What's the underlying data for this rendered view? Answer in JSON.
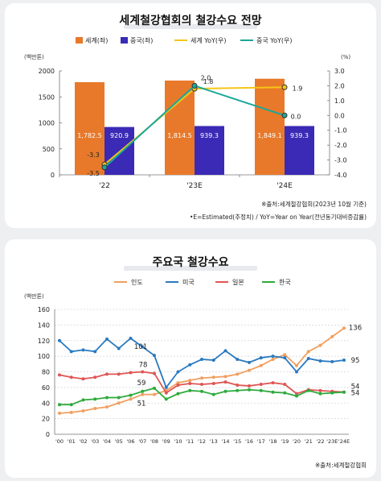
{
  "chart_data": [
    {
      "type": "bar",
      "title": "세계철강협회의 철강수요 전망",
      "legend": [
        {
          "label": "세계(좌)",
          "color": "#e8792a",
          "kind": "bar"
        },
        {
          "label": "중국(좌)",
          "color": "#3b2ab5",
          "kind": "bar"
        },
        {
          "label": "세계 YoY(우)",
          "color": "#f5c518",
          "kind": "line"
        },
        {
          "label": "중국 YoY(우)",
          "color": "#1aa89a",
          "kind": "line"
        }
      ],
      "categories": [
        "'22",
        "'23E",
        "'24E"
      ],
      "series": [
        {
          "name": "세계(좌)",
          "values": [
            1782.5,
            1814.5,
            1849.1
          ],
          "labels": [
            "1,782.5",
            "1,814.5",
            "1,849.1"
          ],
          "color": "#e8792a"
        },
        {
          "name": "중국(좌)",
          "values": [
            920.9,
            939.3,
            939.3
          ],
          "labels": [
            "920.9",
            "939.3",
            "939.3"
          ],
          "color": "#3b2ab5"
        }
      ],
      "line_series": [
        {
          "name": "세계 YoY(우)",
          "values": [
            -3.3,
            1.8,
            1.9
          ],
          "labels": [
            "-3.3",
            "1.8",
            "1.9"
          ],
          "color": "#f5c518"
        },
        {
          "name": "중국 YoY(우)",
          "values": [
            -3.5,
            2.0,
            0.0
          ],
          "labels": [
            "-3.5",
            "2.0",
            "0.0"
          ],
          "color": "#1aa89a"
        }
      ],
      "ylabel": "(백만톤)",
      "ylabel_right": "(%)",
      "ylim": [
        0,
        2000
      ],
      "yticks": [
        "0",
        "500",
        "1000",
        "1500",
        "2000"
      ],
      "ylim_right": [
        -4.0,
        3.0
      ],
      "yticks_right": [
        "-4.0",
        "-3.0",
        "-2.0",
        "-1.0",
        "0.0",
        "1.0",
        "2.0",
        "3.0"
      ],
      "notes": [
        "※출처:세계철강협회(2023년 10월 기준)",
        "•E=Estimated(추정치) / YoY=Year on Year(전년동기대비증감률)"
      ]
    },
    {
      "type": "line",
      "title": "주요국 철강수요",
      "ylabel": "(백만톤)",
      "ylim": [
        0,
        160
      ],
      "yticks": [
        "0",
        "20",
        "40",
        "60",
        "80",
        "100",
        "120",
        "140",
        "160"
      ],
      "x": [
        "'00",
        "'01",
        "'02",
        "'03",
        "'04",
        "'05",
        "'06",
        "'07",
        "'08",
        "'09",
        "'10",
        "'11",
        "'12",
        "'13",
        "'14",
        "'15",
        "'16",
        "'17",
        "'18",
        "'19",
        "'20",
        "'21",
        "'22",
        "'23E",
        "'24E"
      ],
      "series": [
        {
          "name": "인도",
          "color": "#f0a060",
          "values": [
            27,
            28,
            30,
            33,
            35,
            40,
            45,
            51,
            51,
            56,
            66,
            69,
            72,
            73,
            74,
            77,
            82,
            88,
            96,
            102,
            88,
            106,
            114,
            125,
            136
          ]
        },
        {
          "name": "미국",
          "color": "#2a7ac0",
          "values": [
            120,
            106,
            108,
            106,
            122,
            110,
            123,
            112,
            101,
            60,
            80,
            89,
            96,
            95,
            107,
            96,
            92,
            98,
            100,
            98,
            80,
            97,
            94,
            93,
            95
          ]
        },
        {
          "name": "일본",
          "color": "#e05555",
          "values": [
            76,
            73,
            71,
            73,
            77,
            77,
            79,
            80,
            78,
            53,
            63,
            65,
            64,
            65,
            67,
            63,
            62,
            64,
            66,
            64,
            52,
            57,
            56,
            55,
            54
          ]
        },
        {
          "name": "한국",
          "color": "#2eaa3c",
          "values": [
            38,
            38,
            44,
            45,
            47,
            47,
            50,
            55,
            59,
            45,
            52,
            56,
            55,
            51,
            55,
            56,
            57,
            56,
            54,
            53,
            49,
            56,
            52,
            53,
            54
          ]
        }
      ],
      "point_labels": [
        {
          "series": "미국",
          "index": 8,
          "text": "101"
        },
        {
          "series": "일본",
          "index": 8,
          "text": "78"
        },
        {
          "series": "한국",
          "index": 8,
          "text": "59"
        },
        {
          "series": "인도",
          "index": 8,
          "text": "51"
        },
        {
          "series": "인도",
          "index": 24,
          "text": "136"
        },
        {
          "series": "미국",
          "index": 24,
          "text": "95"
        },
        {
          "series": "일본",
          "index": 24,
          "text": "54"
        },
        {
          "series": "한국",
          "index": 24,
          "text": "54"
        }
      ],
      "notes": [
        "※출처:세계철강협회"
      ]
    }
  ]
}
